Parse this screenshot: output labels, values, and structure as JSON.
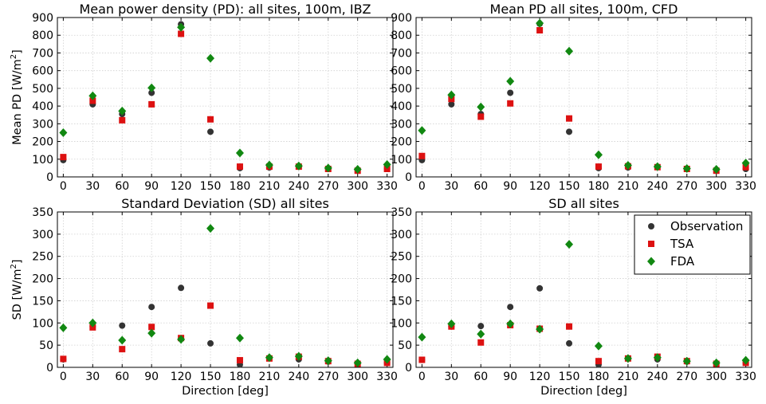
{
  "chart_data": [
    {
      "type": "scatter",
      "title": "Mean power density (PD): all sites, 100m, IBZ",
      "ylabel": "Mean PD [W/m2]",
      "xlabel": "",
      "ylim": [
        0,
        900
      ],
      "yticks": [
        0,
        100,
        200,
        300,
        400,
        500,
        600,
        700,
        800,
        900
      ],
      "x": [
        0,
        30,
        60,
        90,
        120,
        150,
        180,
        210,
        240,
        270,
        300,
        330
      ],
      "series": [
        {
          "name": "Observation",
          "color": "#333333",
          "marker": "circle",
          "values": [
            95,
            410,
            355,
            475,
            862,
            255,
            50,
            53,
            57,
            45,
            38,
            45
          ]
        },
        {
          "name": "TSA",
          "color": "#dd1111",
          "marker": "square",
          "values": [
            112,
            430,
            320,
            410,
            808,
            325,
            58,
            58,
            58,
            45,
            35,
            45
          ]
        },
        {
          "name": "FDA",
          "color": "#118811",
          "marker": "diamond",
          "values": [
            250,
            458,
            372,
            503,
            845,
            670,
            135,
            67,
            62,
            50,
            43,
            70
          ]
        }
      ]
    },
    {
      "type": "scatter",
      "title": "Mean PD all sites, 100m, CFD",
      "ylabel": "",
      "xlabel": "",
      "ylim": [
        0,
        900
      ],
      "x": [
        0,
        30,
        60,
        90,
        120,
        150,
        180,
        210,
        240,
        270,
        300,
        330
      ],
      "series": [
        {
          "name": "Observation",
          "color": "#333333",
          "marker": "circle",
          "values": [
            95,
            410,
            355,
            475,
            865,
            255,
            50,
            53,
            55,
            45,
            38,
            45
          ]
        },
        {
          "name": "TSA",
          "color": "#dd1111",
          "marker": "square",
          "values": [
            118,
            440,
            340,
            415,
            828,
            330,
            58,
            60,
            55,
            45,
            35,
            55
          ]
        },
        {
          "name": "FDA",
          "color": "#118811",
          "marker": "diamond",
          "values": [
            262,
            463,
            395,
            540,
            868,
            710,
            125,
            65,
            58,
            47,
            43,
            78
          ]
        }
      ]
    },
    {
      "type": "scatter",
      "title": "Standard Deviation (SD) all sites",
      "ylabel": "SD [W/m2]",
      "xlabel": "Direction [deg]",
      "ylim": [
        0,
        350
      ],
      "yticks": [
        0,
        50,
        100,
        150,
        200,
        250,
        300,
        350
      ],
      "x": [
        0,
        30,
        60,
        90,
        120,
        150,
        180,
        210,
        240,
        270,
        300,
        330
      ],
      "series": [
        {
          "name": "Observation",
          "color": "#333333",
          "marker": "circle",
          "values": [
            18,
            92,
            94,
            136,
            179,
            54,
            6,
            21,
            18,
            13,
            8,
            10
          ]
        },
        {
          "name": "TSA",
          "color": "#dd1111",
          "marker": "square",
          "values": [
            19,
            90,
            41,
            91,
            66,
            139,
            16,
            20,
            24,
            14,
            8,
            10
          ]
        },
        {
          "name": "FDA",
          "color": "#118811",
          "marker": "diamond",
          "values": [
            89,
            100,
            61,
            77,
            63,
            313,
            66,
            22,
            25,
            15,
            10,
            18
          ]
        }
      ]
    },
    {
      "type": "scatter",
      "title": "SD all sites",
      "ylabel": "",
      "xlabel": "Direction [deg]",
      "ylim": [
        0,
        350
      ],
      "x": [
        0,
        30,
        60,
        90,
        120,
        150,
        180,
        210,
        240,
        270,
        300,
        330
      ],
      "legend": [
        "Observation",
        "TSA",
        "FDA"
      ],
      "legend_position": "top-right",
      "series": [
        {
          "name": "Observation",
          "color": "#333333",
          "marker": "circle",
          "values": [
            17,
            92,
            93,
            136,
            178,
            54,
            6,
            20,
            18,
            13,
            8,
            10
          ]
        },
        {
          "name": "TSA",
          "color": "#dd1111",
          "marker": "square",
          "values": [
            17,
            92,
            56,
            95,
            87,
            92,
            14,
            20,
            24,
            14,
            8,
            10
          ]
        },
        {
          "name": "FDA",
          "color": "#118811",
          "marker": "diamond",
          "values": [
            68,
            98,
            75,
            98,
            86,
            277,
            48,
            20,
            22,
            14,
            10,
            16
          ]
        }
      ]
    }
  ],
  "grid": true
}
